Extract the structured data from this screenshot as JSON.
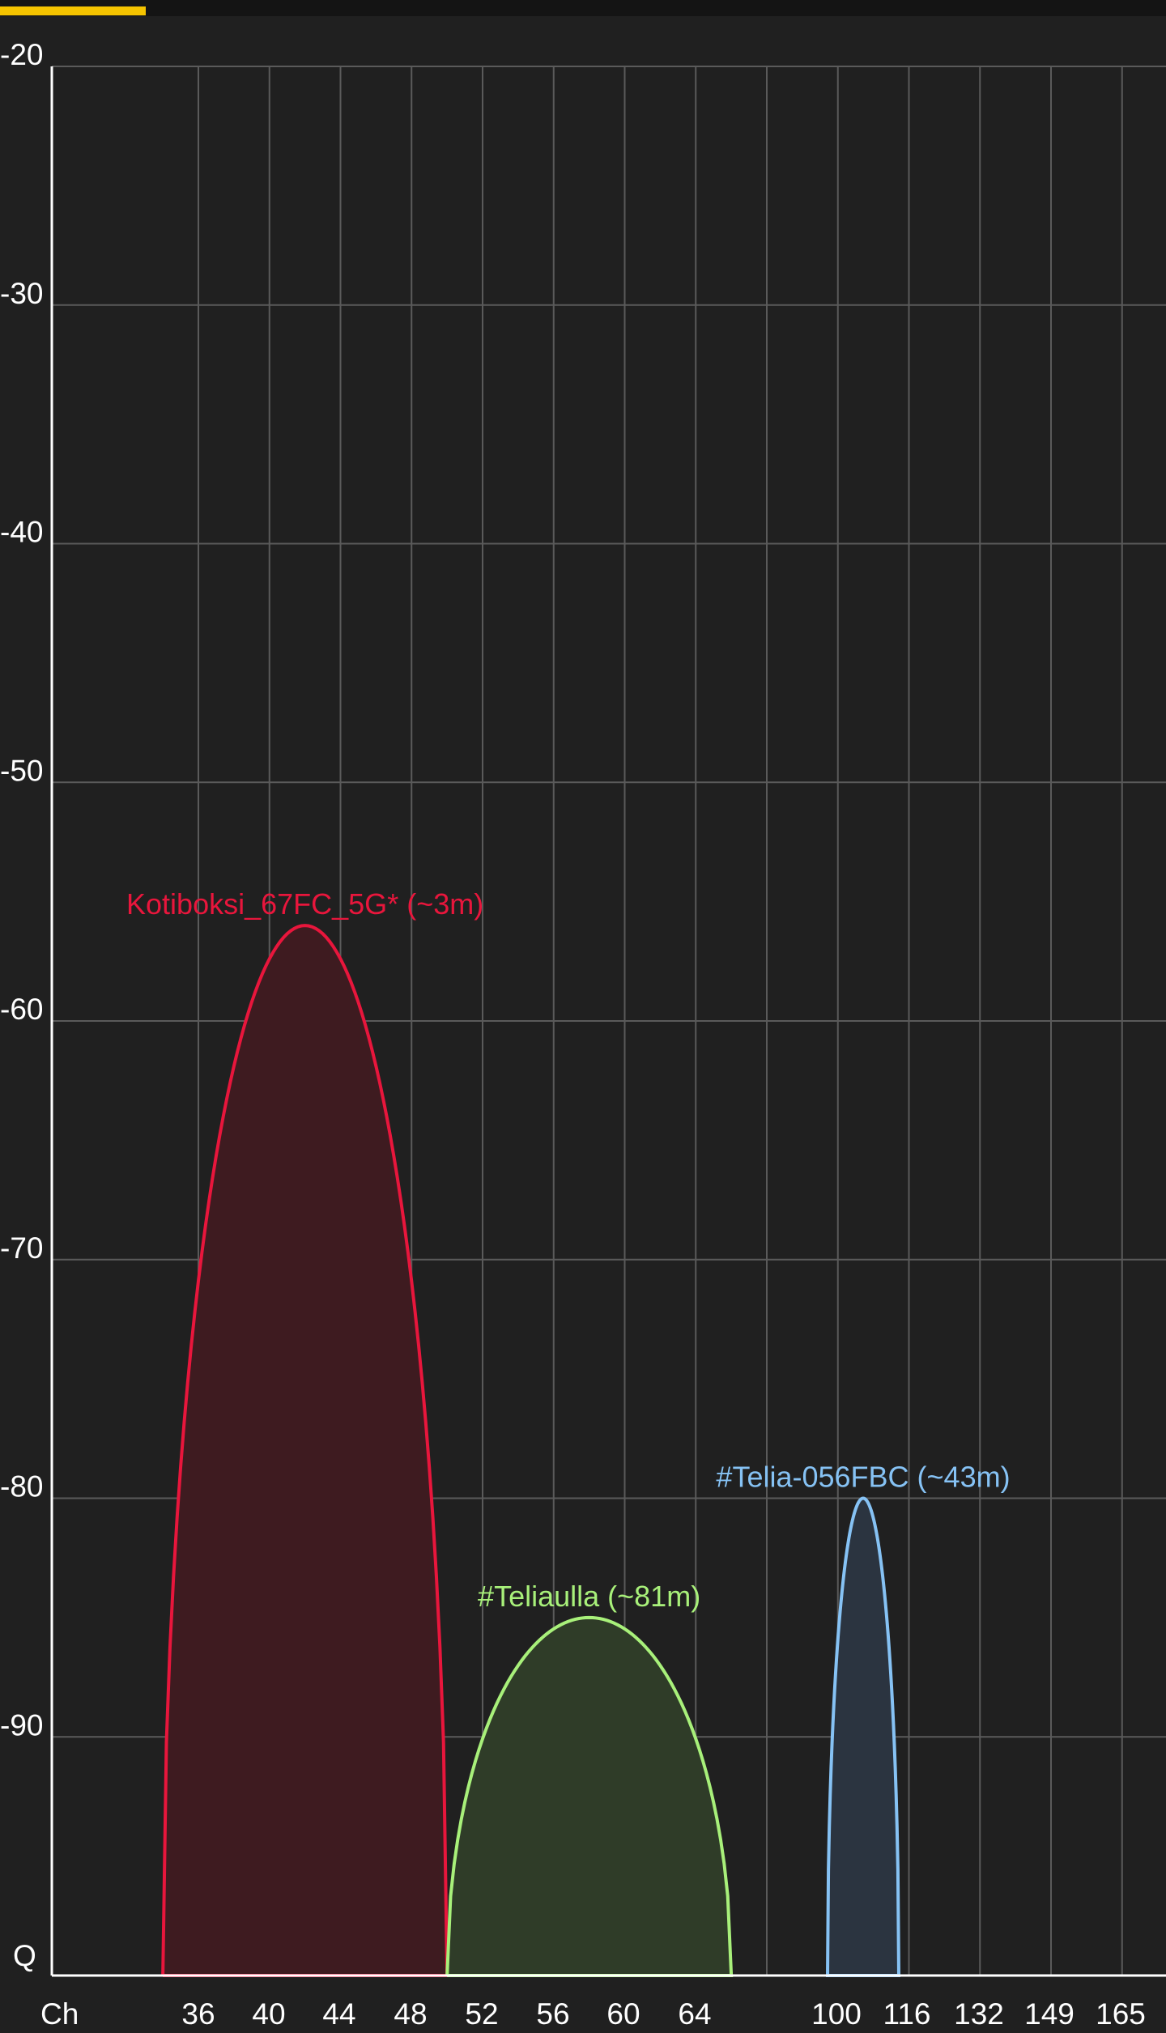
{
  "top_bar": {
    "progress": 0.125,
    "accent_color": "#f5c400"
  },
  "chart_data": {
    "type": "area",
    "xlabel": "Ch",
    "ylabel": "",
    "y_axis_bottom_label": "Q",
    "x_tick_labels": [
      "36",
      "40",
      "44",
      "48",
      "52",
      "56",
      "60",
      "64",
      "100",
      "116",
      "132",
      "149",
      "165"
    ],
    "y_ticks": [
      -20,
      -30,
      -40,
      -50,
      -60,
      -70,
      -80,
      -90
    ],
    "ylim": [
      -100,
      -20
    ],
    "grid": true,
    "series": [
      {
        "name": "Kotiboksi_67FC_5G* (~3m)",
        "color": "#e8163c",
        "fill": "#3e1b20",
        "x_start": 34,
        "x_end": 50,
        "x_peak": 42,
        "peak_dbm": -56
      },
      {
        "name": "#Teliaulla (~81m)",
        "color": "#a8f07a",
        "fill": "#2f3c28",
        "x_start": 50,
        "x_end": 66,
        "x_peak": 58,
        "peak_dbm": -85
      },
      {
        "name": "#Telia-056FBC (~43m)",
        "color": "#86c2f4",
        "fill": "#2b3440",
        "x_start": "100-",
        "x_end": "116-",
        "x_peak": "108",
        "peak_dbm": -80
      }
    ]
  }
}
